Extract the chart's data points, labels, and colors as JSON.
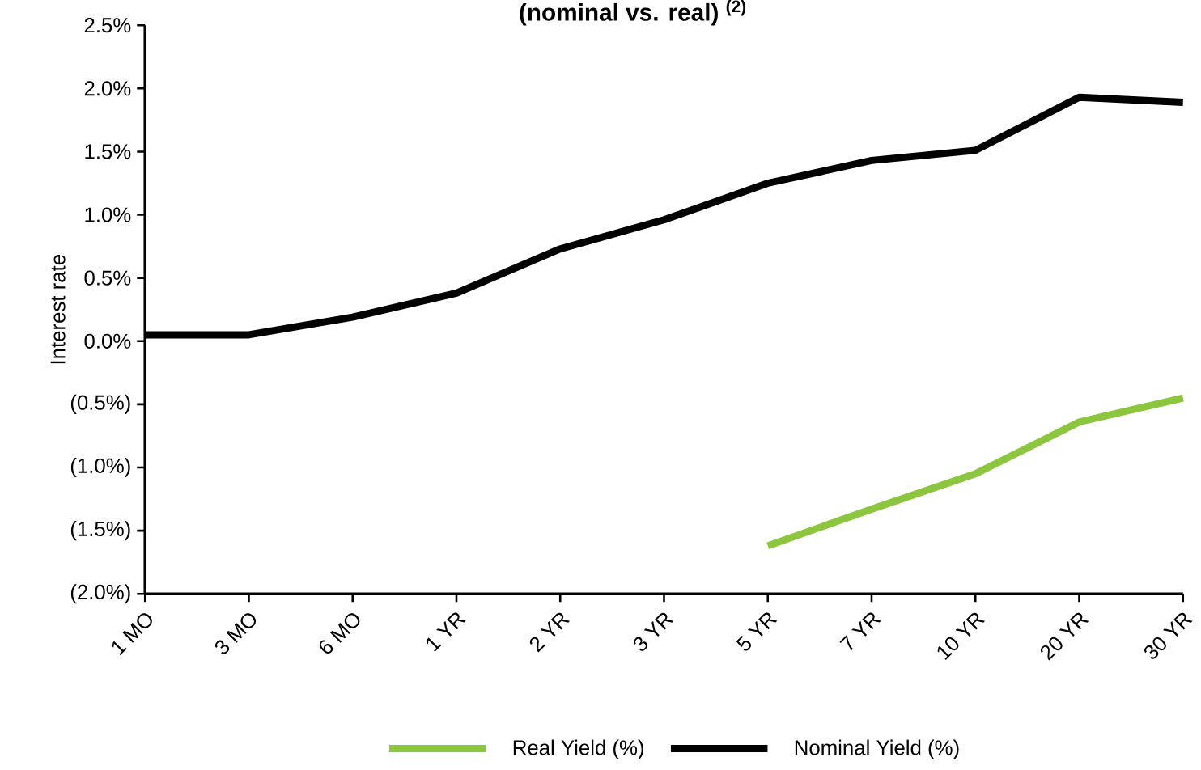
{
  "chart_data": {
    "type": "line",
    "title": "**(nominal vs. real) $^{(2)}$**",
    "ylabel": "Interest rate",
    "categories": [
      "1 MO",
      "3 MO",
      "6 MO",
      "1 YR",
      "2 YR",
      "3 YR",
      "5 YR",
      "7 YR",
      "10 YR",
      "20 YR",
      "30 YR"
    ],
    "series": [
      {
        "name": "Real Yield (%)",
        "color": "#8cc63f",
        "values": [
          null,
          null,
          null,
          null,
          null,
          null,
          -1.62,
          -1.33,
          -1.05,
          -0.64,
          -0.45
        ]
      },
      {
        "name": "Nominal Yield (%)",
        "color": "#000000",
        "values": [
          0.05,
          0.05,
          0.19,
          0.38,
          0.73,
          0.96,
          1.25,
          1.43,
          1.51,
          1.93,
          1.89
        ]
      }
    ],
    "ylim": [
      -2.0,
      2.5
    ],
    "yticks": [
      {
        "value": -2.0,
        "label": "(2.0%)"
      },
      {
        "value": -1.5,
        "label": "(1.5%)"
      },
      {
        "value": -1.0,
        "label": "(1.0%)"
      },
      {
        "value": -0.5,
        "label": "(0.5%)"
      },
      {
        "value": 0.0,
        "label": "0.0%"
      },
      {
        "value": 0.5,
        "label": "0.5%"
      },
      {
        "value": 1.0,
        "label": "1.0%"
      },
      {
        "value": 1.5,
        "label": "1.5%"
      },
      {
        "value": 2.0,
        "label": "2.0%"
      },
      {
        "value": 2.5,
        "label": "2.5%"
      }
    ],
    "grid": false,
    "legend": "bottom",
    "marker": "none",
    "line_style": "solid"
  }
}
